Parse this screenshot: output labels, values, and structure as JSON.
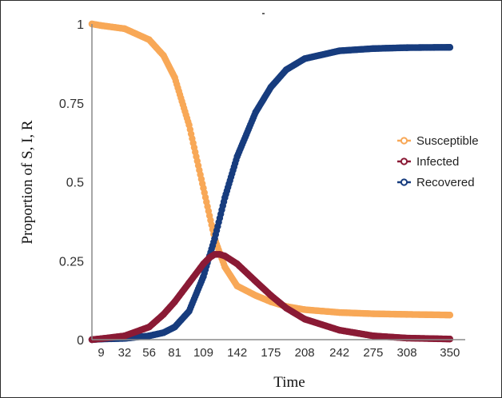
{
  "chart_data": {
    "type": "scatter",
    "title": "",
    "xlabel": "Time",
    "ylabel": "Proportion of S, I, R",
    "xlim": [
      0,
      365
    ],
    "ylim": [
      0,
      1
    ],
    "x_ticks": [
      "9",
      "32",
      "56",
      "81",
      "109",
      "142",
      "175",
      "208",
      "242",
      "275",
      "308",
      "350"
    ],
    "y_ticks": [
      "0",
      "0.25",
      "0.5",
      "0.75",
      "1"
    ],
    "legend_position": "right",
    "grid": false,
    "series": [
      {
        "name": "Susceptible",
        "color": "#f8a857",
        "x": [
          0,
          9,
          32,
          56,
          70,
          81,
          95,
          109,
          120,
          130,
          142,
          160,
          175,
          190,
          208,
          242,
          275,
          308,
          350
        ],
        "y": [
          1.0,
          0.995,
          0.985,
          0.95,
          0.9,
          0.83,
          0.68,
          0.48,
          0.32,
          0.23,
          0.17,
          0.14,
          0.12,
          0.105,
          0.095,
          0.086,
          0.082,
          0.08,
          0.078
        ]
      },
      {
        "name": "Infected",
        "color": "#8a1a35",
        "x": [
          0,
          9,
          32,
          56,
          70,
          81,
          95,
          109,
          115,
          120,
          125,
          130,
          142,
          160,
          175,
          190,
          208,
          242,
          275,
          308,
          350
        ],
        "y": [
          0.0,
          0.003,
          0.012,
          0.04,
          0.08,
          0.12,
          0.18,
          0.24,
          0.26,
          0.27,
          0.27,
          0.265,
          0.24,
          0.185,
          0.14,
          0.1,
          0.065,
          0.03,
          0.012,
          0.005,
          0.002
        ]
      },
      {
        "name": "Recovered",
        "color": "#173c7e",
        "x": [
          0,
          9,
          32,
          56,
          70,
          81,
          95,
          109,
          120,
          130,
          142,
          160,
          175,
          190,
          208,
          242,
          275,
          308,
          350
        ],
        "y": [
          0.0,
          0.002,
          0.004,
          0.012,
          0.022,
          0.04,
          0.09,
          0.2,
          0.32,
          0.45,
          0.58,
          0.72,
          0.8,
          0.855,
          0.89,
          0.915,
          0.922,
          0.925,
          0.926
        ]
      }
    ]
  }
}
